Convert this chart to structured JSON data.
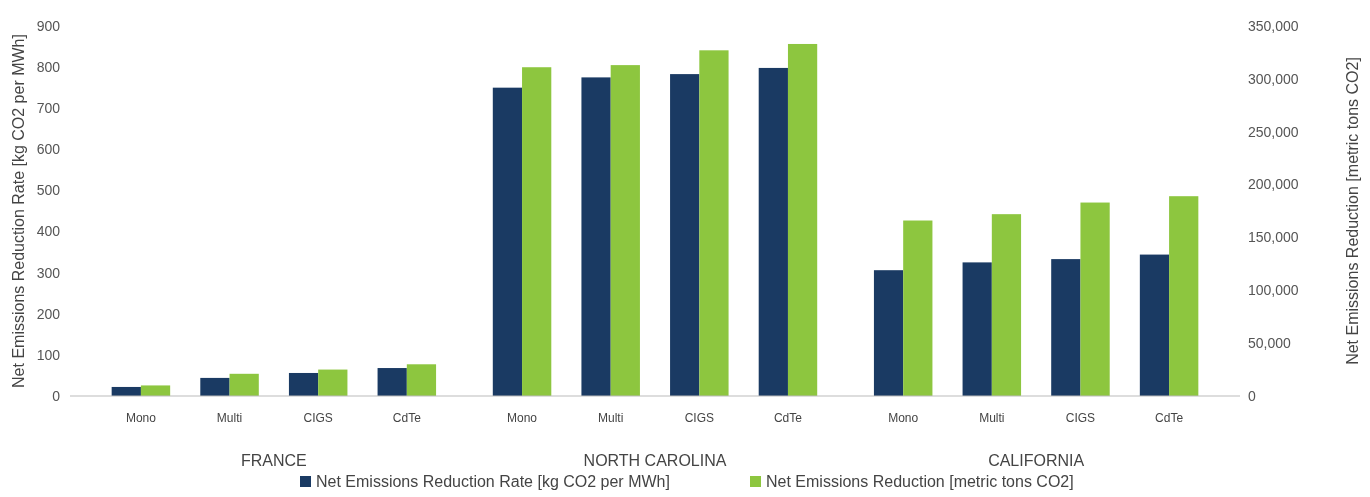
{
  "chart_data": {
    "type": "bar",
    "categories": [
      "Mono",
      "Multi",
      "CIGS",
      "CdTe",
      "Mono",
      "Multi",
      "CIGS",
      "CdTe",
      "Mono",
      "Multi",
      "CIGS",
      "CdTe"
    ],
    "series": [
      {
        "name": "Net Emissions Reduction Rate [kg CO2 per MWh]",
        "color": "#1a3a63",
        "values": [
          22,
          44,
          56,
          68,
          750,
          775,
          783,
          798,
          306,
          325,
          333,
          344
        ]
      },
      {
        "name": "Net Emissions Reduction [metric tons CO2]",
        "color": "#8dc63f",
        "axis": "y2",
        "values": [
          10000,
          21000,
          25000,
          30000,
          311000,
          313000,
          327000,
          333000,
          166000,
          172000,
          183000,
          189000
        ]
      }
    ],
    "ylabel": "Net Emissions Reduction Rate [kg CO2 per MWh]",
    "y2label": "Net Emissions Reduction [metric tons CO2]",
    "ylim": [
      0,
      900
    ],
    "yticks": [
      0,
      100,
      200,
      300,
      400,
      500,
      600,
      700,
      800,
      900
    ],
    "y2lim": [
      0,
      350000
    ],
    "y2ticks": [
      {
        "value": 0,
        "label": "0"
      },
      {
        "value": 50000,
        "label": "50,000"
      },
      {
        "value": 100000,
        "label": "100,000"
      },
      {
        "value": 150000,
        "label": "150,000"
      },
      {
        "value": 200000,
        "label": "200,000"
      },
      {
        "value": 250000,
        "label": "250,000"
      },
      {
        "value": 300000,
        "label": "300,000"
      },
      {
        "value": 350000,
        "label": "350,000"
      }
    ],
    "annotations": [
      "FRANCE",
      "NORTH CAROLINA",
      "CALIFORNIA"
    ],
    "legend": "bottom",
    "grid": false
  }
}
